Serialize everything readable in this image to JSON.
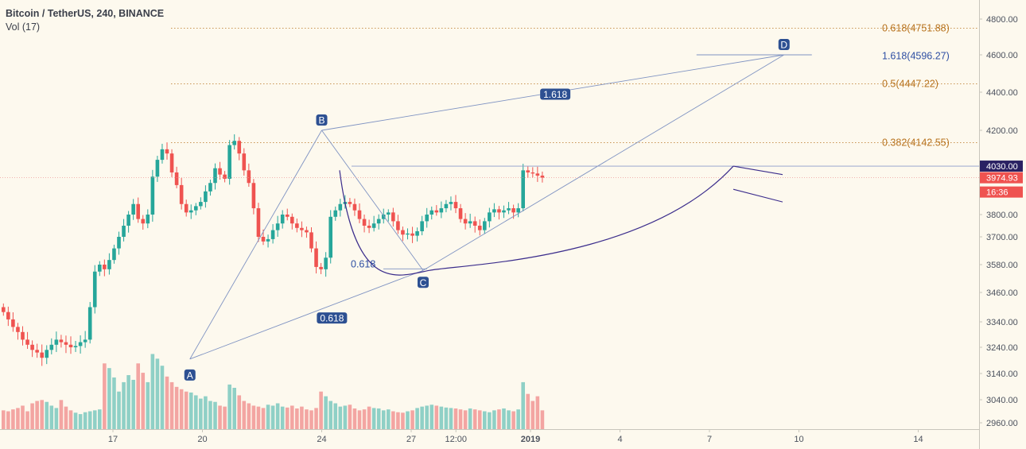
{
  "header": {
    "title": "Bitcoin / TetherUS, 240, BINANCE",
    "indicator": "Vol (17)"
  },
  "colors": {
    "up": "#26a69a",
    "down": "#ef5350",
    "volUp": "#8fd0c6",
    "volDown": "#f3a5a2",
    "fib": "#b8731e",
    "pattern": "#2e4fa3",
    "curve": "#3b2d8c",
    "bg": "#fdf9ee"
  },
  "chart_data": {
    "type": "candlestick",
    "title": "Bitcoin / TetherUS, 240, BINANCE",
    "y_axis_ticks": [
      "4800.00",
      "4600.00",
      "4400.00",
      "4200.00",
      "3800.00",
      "3700.00",
      "3580.00",
      "3460.00",
      "3340.00",
      "3240.00",
      "3140.00",
      "3040.00",
      "2960.00"
    ],
    "x_axis_ticks": [
      "17",
      "20",
      "24",
      "27",
      "12:00",
      "2019",
      "4",
      "7",
      "10",
      "14"
    ],
    "x_axis_tick_positions_days": [
      2,
      5,
      9,
      12,
      13.5,
      16,
      19,
      22,
      25,
      29
    ],
    "current_price": {
      "label": "3974.93",
      "value": 3974.93,
      "countdown": "16:36"
    },
    "high_marker": {
      "label": "4030.00",
      "value": 4030
    },
    "fib_levels": [
      {
        "label": "0.618(4751.88)",
        "value": 4751.88
      },
      {
        "label": "1.618(4596.27)",
        "value": 4596.27
      },
      {
        "label": "0.5(4447.22)",
        "value": 4447.22
      },
      {
        "label": "0.382(4142.55)",
        "value": 4142.55
      }
    ],
    "pattern_points": [
      {
        "label": "A",
        "day": 4.58,
        "value": 3195
      },
      {
        "label": "B",
        "day": 9.0,
        "value": 4200
      },
      {
        "label": "C",
        "day": 12.4,
        "value": 3555
      },
      {
        "label": "D",
        "day": 24.5,
        "value": 4600
      }
    ],
    "ratio_labels": [
      "1.618",
      "0.618",
      "0.618"
    ],
    "volume_range": [
      0,
      220
    ],
    "closes": [
      3380,
      3350,
      3320,
      3300,
      3270,
      3250,
      3230,
      3220,
      3200,
      3230,
      3250,
      3270,
      3260,
      3250,
      3240,
      3245,
      3260,
      3270,
      3400,
      3550,
      3580,
      3560,
      3600,
      3650,
      3700,
      3750,
      3800,
      3850,
      3780,
      3760,
      3800,
      3980,
      4060,
      4110,
      4090,
      4000,
      3940,
      3850,
      3810,
      3820,
      3840,
      3860,
      3910,
      3950,
      4020,
      3990,
      3970,
      4130,
      4150,
      4090,
      4010,
      3950,
      3830,
      3700,
      3680,
      3690,
      3730,
      3760,
      3800,
      3790,
      3760,
      3740,
      3730,
      3720,
      3650,
      3570,
      3560,
      3610,
      3790,
      3820,
      3850,
      3860,
      3850,
      3820,
      3780,
      3750,
      3740,
      3760,
      3780,
      3800,
      3810,
      3770,
      3730,
      3710,
      3715,
      3705,
      3725,
      3770,
      3800,
      3820,
      3810,
      3830,
      3850,
      3860,
      3830,
      3780,
      3760,
      3770,
      3750,
      3730,
      3770,
      3810,
      3825,
      3810,
      3820,
      3830,
      3810,
      3830,
      4010,
      4000,
      3995,
      3985,
      3975
    ],
    "volumes": [
      40,
      38,
      42,
      45,
      50,
      38,
      55,
      60,
      62,
      58,
      50,
      45,
      62,
      48,
      40,
      35,
      32,
      36,
      38,
      40,
      42,
      140,
      130,
      110,
      80,
      100,
      115,
      105,
      140,
      120,
      100,
      160,
      150,
      135,
      112,
      100,
      90,
      85,
      80,
      78,
      72,
      65,
      70,
      60,
      58,
      50,
      48,
      95,
      88,
      72,
      60,
      55,
      50,
      48,
      45,
      52,
      50,
      55,
      48,
      46,
      50,
      44,
      48,
      42,
      40,
      45,
      80,
      70,
      60,
      55,
      48,
      50,
      52,
      44,
      40,
      42,
      48,
      45,
      44,
      40,
      42,
      38,
      36,
      35,
      38,
      40,
      45,
      48,
      50,
      52,
      50,
      48,
      46,
      45,
      44,
      42,
      40,
      44,
      42,
      40,
      38,
      36,
      40,
      42,
      44,
      40,
      38,
      42,
      100,
      75,
      60,
      70,
      40
    ]
  }
}
